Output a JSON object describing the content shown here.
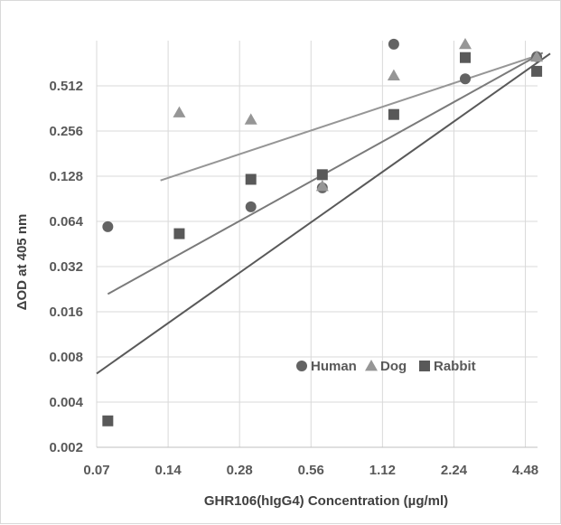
{
  "chart_data": {
    "type": "scatter",
    "title": "",
    "xlabel": "GHR106(hIgG4) Concentration (µg/ml)",
    "ylabel": "ΔOD at 405 nm",
    "x_scale": "log2",
    "y_scale": "log2",
    "xlim": [
      0.07,
      5.04
    ],
    "ylim": [
      0.002,
      1.024
    ],
    "x_ticks": [
      "0.07",
      "0.14",
      "0.28",
      "0.56",
      "1.12",
      "2.24",
      "4.48"
    ],
    "y_ticks": [
      "0.002",
      "0.004",
      "0.008",
      "0.016",
      "0.032",
      "0.064",
      "0.128",
      "0.256",
      "0.512"
    ],
    "grid": true,
    "legend": "inside-lower-right",
    "series": [
      {
        "name": "Human",
        "marker": "circle",
        "color": "#636363",
        "x": [
          0.078,
          0.156,
          0.3125,
          0.625,
          1.25,
          2.5,
          5.0
        ],
        "y": [
          0.059,
          null,
          0.08,
          0.107,
          0.97,
          0.57,
          0.8
        ]
      },
      {
        "name": "Dog",
        "marker": "triangle",
        "color": "#969696",
        "x": [
          0.078,
          0.156,
          0.3125,
          0.625,
          1.25,
          2.5,
          5.0
        ],
        "y": [
          null,
          0.34,
          0.305,
          0.11,
          0.6,
          0.97,
          0.8
        ]
      },
      {
        "name": "Rabbit",
        "marker": "square",
        "color": "#595959",
        "x": [
          0.078,
          0.156,
          0.3125,
          0.625,
          1.25,
          2.5,
          5.0
        ],
        "y": [
          0.003,
          0.053,
          0.122,
          0.131,
          0.33,
          0.79,
          0.64
        ]
      }
    ],
    "trendlines": [
      {
        "series": "Dog",
        "color": "#969696",
        "type": "power",
        "points": [
          {
            "x": 0.13,
            "y": 0.12
          },
          {
            "x": 5.2,
            "y": 0.83
          }
        ]
      },
      {
        "series": "Human",
        "color": "#7a7a7a",
        "type": "power",
        "points": [
          {
            "x": 0.078,
            "y": 0.021
          },
          {
            "x": 5.3,
            "y": 0.85
          }
        ]
      },
      {
        "series": "Rabbit",
        "color": "#595959",
        "type": "power",
        "points": [
          {
            "x": 0.07,
            "y": 0.0062
          },
          {
            "x": 5.7,
            "y": 0.84
          }
        ]
      }
    ]
  }
}
